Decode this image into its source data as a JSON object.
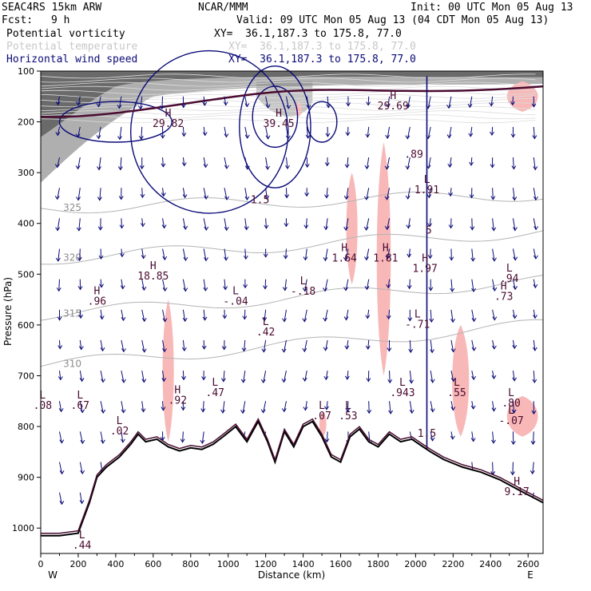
{
  "header": {
    "model": "SEAC4RS 15km ARW",
    "org": "NCAR/MMM",
    "init": "Init: 00 UTC Mon 05 Aug 13",
    "fcst_label": "Fcst:",
    "fcst_value": "9 h",
    "valid": "Valid: 09 UTC Mon 05 Aug 13 (04 CDT Mon 05 Aug 13)",
    "fields": [
      {
        "name": "Potential vorticity",
        "xy": "XY=  36.1,187.3 to 175.8, 77.0",
        "color": "#000000"
      },
      {
        "name": "Potential temperature",
        "xy": "XY=  36.1,187.3 to 175.8, 77.0",
        "color": "#c8c8c8"
      },
      {
        "name": "Horizontal wind speed",
        "xy": "XY=  36.1,187.3 to 175.8, 77.0",
        "color": "#0a0a78"
      }
    ]
  },
  "chart_data": {
    "type": "contour-cross-section",
    "xlabel": "Distance (km)",
    "ylabel": "Pressure (hPa)",
    "xlim": [
      0,
      2680
    ],
    "ylim": [
      1050,
      100
    ],
    "x_ticks": [
      0,
      200,
      400,
      600,
      800,
      1000,
      1200,
      1400,
      1600,
      1800,
      2000,
      2200,
      2400,
      2600
    ],
    "y_ticks": [
      100,
      200,
      300,
      400,
      500,
      600,
      700,
      800,
      900,
      1000
    ],
    "x_end_labels": {
      "left": "W",
      "right": "E"
    },
    "terrain": [
      [
        0,
        1015
      ],
      [
        100,
        1015
      ],
      [
        200,
        1010
      ],
      [
        260,
        950
      ],
      [
        300,
        900
      ],
      [
        350,
        880
      ],
      [
        420,
        860
      ],
      [
        480,
        835
      ],
      [
        520,
        815
      ],
      [
        560,
        830
      ],
      [
        620,
        825
      ],
      [
        680,
        840
      ],
      [
        740,
        848
      ],
      [
        800,
        842
      ],
      [
        860,
        845
      ],
      [
        920,
        835
      ],
      [
        980,
        818
      ],
      [
        1040,
        800
      ],
      [
        1100,
        830
      ],
      [
        1160,
        790
      ],
      [
        1210,
        830
      ],
      [
        1250,
        870
      ],
      [
        1300,
        810
      ],
      [
        1350,
        840
      ],
      [
        1400,
        800
      ],
      [
        1450,
        790
      ],
      [
        1500,
        820
      ],
      [
        1550,
        860
      ],
      [
        1600,
        870
      ],
      [
        1650,
        820
      ],
      [
        1700,
        805
      ],
      [
        1750,
        830
      ],
      [
        1800,
        840
      ],
      [
        1860,
        815
      ],
      [
        1920,
        830
      ],
      [
        1980,
        825
      ],
      [
        2040,
        840
      ],
      [
        2080,
        850
      ],
      [
        2150,
        865
      ],
      [
        2250,
        880
      ],
      [
        2350,
        890
      ],
      [
        2450,
        905
      ],
      [
        2550,
        925
      ],
      [
        2680,
        950
      ]
    ],
    "theta_contours": [
      {
        "label": "325",
        "p0": 370,
        "slope": -0.01
      },
      {
        "label": "320",
        "p0": 470,
        "slope": -0.02
      },
      {
        "label": "315",
        "p0": 580,
        "slope": -0.025
      },
      {
        "label": "310",
        "p0": 680,
        "slope": -0.03
      }
    ],
    "pv_extrema": [
      {
        "kind": "H",
        "value": "29.82",
        "x": 680,
        "p": 190
      },
      {
        "kind": "H",
        "value": "39.45",
        "x": 1270,
        "p": 190
      },
      {
        "kind": "H",
        "value": "29.69",
        "x": 1880,
        "p": 155
      },
      {
        "kind": "",
        "value": ".89",
        "x": 1990,
        "p": 250
      },
      {
        "kind": "L",
        "value": "1.91",
        "x": 2060,
        "p": 320
      },
      {
        "kind": "H",
        "value": "18.85",
        "x": 600,
        "p": 490
      },
      {
        "kind": "H",
        "value": ".96",
        "x": 300,
        "p": 540
      },
      {
        "kind": "L",
        "value": "-.04",
        "x": 1040,
        "p": 540
      },
      {
        "kind": "L",
        "value": "-.18",
        "x": 1400,
        "p": 520
      },
      {
        "kind": "H",
        "value": "1.64",
        "x": 1620,
        "p": 455
      },
      {
        "kind": "H",
        "value": "1.81",
        "x": 1840,
        "p": 455
      },
      {
        "kind": "H",
        "value": "1.97",
        "x": 2050,
        "p": 475
      },
      {
        "kind": "L",
        "value": ".42",
        "x": 1200,
        "p": 600
      },
      {
        "kind": "L",
        "value": "-.71",
        "x": 2010,
        "p": 585
      },
      {
        "kind": "H",
        "value": ".73",
        "x": 2470,
        "p": 530
      },
      {
        "kind": "L",
        "value": ".94",
        "x": 2500,
        "p": 495
      },
      {
        "kind": "L",
        "value": ".08",
        "x": 10,
        "p": 745
      },
      {
        "kind": "L",
        "value": ".67",
        "x": 210,
        "p": 745
      },
      {
        "kind": "L",
        "value": ".02",
        "x": 420,
        "p": 795
      },
      {
        "kind": "H",
        "value": ".92",
        "x": 730,
        "p": 735
      },
      {
        "kind": "L",
        "value": ".47",
        "x": 930,
        "p": 720
      },
      {
        "kind": "L",
        "value": ".07",
        "x": 1500,
        "p": 765
      },
      {
        "kind": "L",
        "value": ".53",
        "x": 1640,
        "p": 765
      },
      {
        "kind": "L",
        "value": ".943",
        "x": 1930,
        "p": 720
      },
      {
        "kind": "L",
        "value": ".55",
        "x": 2220,
        "p": 720
      },
      {
        "kind": "L",
        "value": ".80",
        "x": 2510,
        "p": 740
      },
      {
        "kind": "L",
        "value": "-.07",
        "x": 2510,
        "p": 775
      },
      {
        "kind": "H",
        "value": "9.17",
        "x": 2540,
        "p": 915
      },
      {
        "kind": "L",
        "value": ".44",
        "x": 220,
        "p": 1020
      }
    ],
    "wind_speed_labels": [
      {
        "value": "1.5",
        "x": 1170,
        "p": 360
      },
      {
        "value": "5",
        "x": 2070,
        "p": 420
      },
      {
        "value": "1.5",
        "x": 2060,
        "p": 820
      }
    ],
    "pink_regions": [
      {
        "x0": 640,
        "x1": 720,
        "p0": 550,
        "p1": 830
      },
      {
        "x0": 1620,
        "x1": 1700,
        "p0": 300,
        "p1": 520
      },
      {
        "x0": 1780,
        "x1": 1880,
        "p0": 240,
        "p1": 700
      },
      {
        "x0": 2180,
        "x1": 2300,
        "p0": 600,
        "p1": 820
      },
      {
        "x0": 2460,
        "x1": 2680,
        "p0": 120,
        "p1": 180
      },
      {
        "x0": 2460,
        "x1": 2680,
        "p0": 740,
        "p1": 820
      },
      {
        "x0": 1350,
        "x1": 1400,
        "p0": 160,
        "p1": 190
      },
      {
        "x0": 1480,
        "x1": 1530,
        "p0": 770,
        "p1": 820
      }
    ],
    "colors": {
      "pv": "#000000",
      "pv_dark": "#4a0b30",
      "theta": "#b4b4b4",
      "wind": "#0a0a78",
      "pink": "#f8b8b8",
      "gray_shade": "#6e6e6e",
      "terrain": "#ffffff"
    }
  }
}
